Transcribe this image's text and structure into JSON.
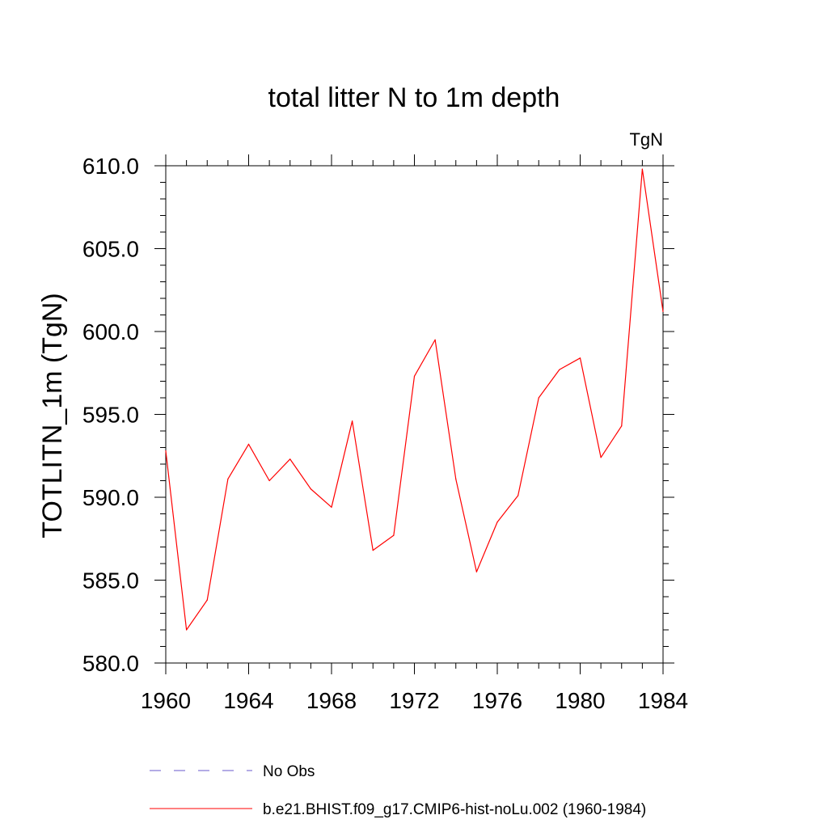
{
  "chart_data": {
    "type": "line",
    "title": "total litter N to 1m depth",
    "units_label": "TgN",
    "ylabel": "TOTLITN_1m  (TgN)",
    "xlabel": "",
    "xlim": [
      1960,
      1984
    ],
    "ylim": [
      580,
      610
    ],
    "x_ticks": [
      {
        "value": 1960,
        "label": "1960"
      },
      {
        "value": 1964,
        "label": "1964"
      },
      {
        "value": 1968,
        "label": "1968"
      },
      {
        "value": 1972,
        "label": "1972"
      },
      {
        "value": 1976,
        "label": "1976"
      },
      {
        "value": 1980,
        "label": "1980"
      },
      {
        "value": 1984,
        "label": "1984"
      }
    ],
    "y_ticks": [
      {
        "value": 580,
        "label": "580.0"
      },
      {
        "value": 585,
        "label": "585.0"
      },
      {
        "value": 590,
        "label": "590.0"
      },
      {
        "value": 595,
        "label": "595.0"
      },
      {
        "value": 600,
        "label": "600.0"
      },
      {
        "value": 605,
        "label": "605.0"
      },
      {
        "value": 610,
        "label": "610.0"
      }
    ],
    "x_minor_step": 1,
    "y_minor_step": 1,
    "grid": false,
    "series": [
      {
        "name": "b.e21.BHIST.f09_g17.CMIP6-hist-noLu.002 (1960-1984)",
        "color": "#ff0000",
        "x": [
          1960,
          1961,
          1962,
          1963,
          1964,
          1965,
          1966,
          1967,
          1968,
          1969,
          1970,
          1971,
          1972,
          1973,
          1974,
          1975,
          1976,
          1977,
          1978,
          1979,
          1980,
          1981,
          1982,
          1983,
          1984
        ],
        "values": [
          592.8,
          582.0,
          583.8,
          591.1,
          593.2,
          591.0,
          592.3,
          590.5,
          589.4,
          594.6,
          586.8,
          587.7,
          597.3,
          599.5,
          591.1,
          585.5,
          588.5,
          590.1,
          596.0,
          597.7,
          598.4,
          592.4,
          594.3,
          609.8,
          601.2
        ]
      }
    ],
    "legend": {
      "placement": "bottom",
      "entries": [
        {
          "label": "No Obs",
          "color": "#6a5acd",
          "style": "dashed"
        },
        {
          "label": "b.e21.BHIST.f09_g17.CMIP6-hist-noLu.002 (1960-1984)",
          "color": "#ff0000",
          "style": "solid"
        }
      ]
    }
  }
}
